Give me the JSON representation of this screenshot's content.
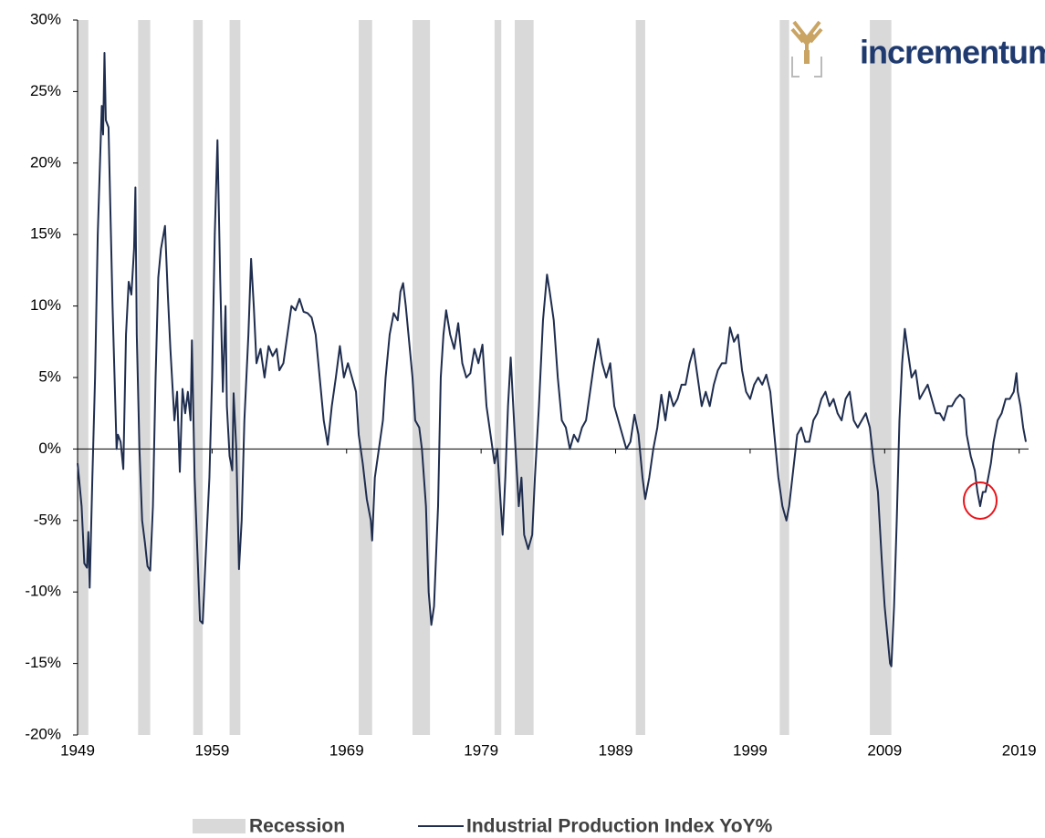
{
  "chart_data": {
    "type": "line",
    "logo": "incrementum",
    "xlim": [
      1949,
      2019.7
    ],
    "xticks": [
      1949,
      1959,
      1969,
      1979,
      1989,
      1999,
      2009,
      2019
    ],
    "ylim": [
      -20,
      30
    ],
    "yticks": [
      {
        "value": -20,
        "label": "-20%"
      },
      {
        "value": -15,
        "label": "-15%"
      },
      {
        "value": -10,
        "label": "-10%"
      },
      {
        "value": -5,
        "label": "-5%"
      },
      {
        "value": 0,
        "label": "0%"
      },
      {
        "value": 5,
        "label": "5%"
      },
      {
        "value": 10,
        "label": "10%"
      },
      {
        "value": 15,
        "label": "15%"
      },
      {
        "value": 20,
        "label": "20%"
      },
      {
        "value": 25,
        "label": "25%"
      },
      {
        "value": 30,
        "label": "30%"
      }
    ],
    "series": [
      {
        "name": "Recession",
        "type": "band",
        "color": "#d9d9d9",
        "ranges": [
          [
            1949.0,
            1949.8
          ],
          [
            1953.5,
            1954.4
          ],
          [
            1957.6,
            1958.3
          ],
          [
            1960.3,
            1961.1
          ],
          [
            1969.9,
            1970.9
          ],
          [
            1973.9,
            1975.2
          ],
          [
            1980.0,
            1980.5
          ],
          [
            1981.5,
            1982.9
          ],
          [
            1990.5,
            1991.2
          ],
          [
            2001.2,
            2001.9
          ],
          [
            2007.9,
            2009.5
          ]
        ]
      },
      {
        "name": "Industrial Production Index YoY%",
        "type": "line",
        "color": "#1f2d4e",
        "x": [
          1949.0,
          1949.3,
          1949.5,
          1949.7,
          1949.8,
          1949.9,
          1950.1,
          1950.3,
          1950.5,
          1950.8,
          1950.9,
          1951.0,
          1951.1,
          1951.3,
          1951.6,
          1951.9,
          1952.0,
          1952.2,
          1952.4,
          1952.6,
          1952.8,
          1953.0,
          1953.2,
          1953.3,
          1953.4,
          1953.6,
          1953.8,
          1954.0,
          1954.2,
          1954.4,
          1954.6,
          1954.8,
          1955.0,
          1955.2,
          1955.5,
          1955.7,
          1955.9,
          1956.2,
          1956.4,
          1956.6,
          1956.8,
          1957.0,
          1957.2,
          1957.4,
          1957.5,
          1957.7,
          1957.9,
          1958.1,
          1958.3,
          1958.5,
          1958.8,
          1959.0,
          1959.2,
          1959.4,
          1959.6,
          1959.8,
          1960.0,
          1960.1,
          1960.3,
          1960.5,
          1960.6,
          1960.8,
          1961.0,
          1961.2,
          1961.4,
          1961.7,
          1961.9,
          1962.1,
          1962.3,
          1962.6,
          1962.9,
          1963.2,
          1963.5,
          1963.8,
          1964.0,
          1964.3,
          1964.6,
          1964.9,
          1965.2,
          1965.5,
          1965.8,
          1966.1,
          1966.4,
          1966.7,
          1967.0,
          1967.3,
          1967.6,
          1967.9,
          1968.2,
          1968.5,
          1968.8,
          1969.1,
          1969.4,
          1969.7,
          1969.9,
          1970.2,
          1970.5,
          1970.8,
          1970.9,
          1971.1,
          1971.4,
          1971.7,
          1971.9,
          1972.2,
          1972.5,
          1972.8,
          1973.0,
          1973.2,
          1973.4,
          1973.6,
          1973.9,
          1974.1,
          1974.4,
          1974.6,
          1974.9,
          1975.1,
          1975.3,
          1975.5,
          1975.8,
          1976.0,
          1976.2,
          1976.4,
          1976.7,
          1977.0,
          1977.3,
          1977.6,
          1977.9,
          1978.2,
          1978.5,
          1978.8,
          1979.1,
          1979.4,
          1979.7,
          1980.0,
          1980.2,
          1980.4,
          1980.6,
          1980.8,
          1981.0,
          1981.2,
          1981.5,
          1981.8,
          1982.0,
          1982.2,
          1982.5,
          1982.8,
          1983.0,
          1983.3,
          1983.6,
          1983.9,
          1984.1,
          1984.4,
          1984.7,
          1985.0,
          1985.3,
          1985.6,
          1985.9,
          1986.2,
          1986.5,
          1986.8,
          1987.1,
          1987.4,
          1987.7,
          1988.0,
          1988.3,
          1988.6,
          1988.9,
          1989.2,
          1989.5,
          1989.8,
          1990.1,
          1990.4,
          1990.7,
          1991.0,
          1991.2,
          1991.5,
          1991.8,
          1992.1,
          1992.4,
          1992.7,
          1993.0,
          1993.3,
          1993.6,
          1993.9,
          1994.2,
          1994.5,
          1994.8,
          1995.1,
          1995.4,
          1995.7,
          1996.0,
          1996.3,
          1996.6,
          1996.9,
          1997.2,
          1997.5,
          1997.8,
          1998.1,
          1998.4,
          1998.7,
          1999.0,
          1999.3,
          1999.6,
          1999.9,
          2000.2,
          2000.5,
          2000.8,
          2001.1,
          2001.4,
          2001.7,
          2001.9,
          2002.2,
          2002.5,
          2002.8,
          2003.1,
          2003.4,
          2003.7,
          2004.0,
          2004.3,
          2004.6,
          2004.9,
          2005.2,
          2005.5,
          2005.8,
          2006.1,
          2006.4,
          2006.7,
          2007.0,
          2007.3,
          2007.6,
          2007.9,
          2008.2,
          2008.5,
          2008.8,
          2009.0,
          2009.2,
          2009.4,
          2009.5,
          2009.7,
          2009.9,
          2010.1,
          2010.3,
          2010.5,
          2010.7,
          2011.0,
          2011.3,
          2011.6,
          2011.9,
          2012.2,
          2012.5,
          2012.8,
          2013.1,
          2013.4,
          2013.7,
          2014.0,
          2014.3,
          2014.6,
          2014.9,
          2015.1,
          2015.4,
          2015.7,
          2015.9,
          2016.1,
          2016.3,
          2016.5,
          2016.7,
          2016.9,
          2017.1,
          2017.4,
          2017.7,
          2018.0,
          2018.3,
          2018.6,
          2018.8,
          2018.9,
          2019.1,
          2019.3,
          2019.5
        ],
        "values": [
          -1,
          -4,
          -8,
          -8.3,
          -5.8,
          -9.7,
          -2,
          5,
          15,
          24,
          22,
          27.7,
          23,
          22.5,
          10,
          0,
          1,
          0.5,
          -1.4,
          8,
          11.7,
          10.8,
          14,
          18.3,
          8,
          0,
          -5,
          -6.5,
          -8.2,
          -8.5,
          -4,
          5,
          12,
          14,
          15.6,
          11,
          7,
          2,
          4,
          -1.6,
          4.2,
          2.5,
          4,
          2,
          7.6,
          -2,
          -7,
          -12,
          -12.2,
          -8,
          -2,
          5,
          15,
          21.6,
          12,
          4,
          10,
          3,
          -0.5,
          -1.5,
          3.9,
          0,
          -8.4,
          -5,
          2,
          8,
          13.3,
          10,
          6,
          7,
          5,
          7.2,
          6.5,
          7,
          5.5,
          6,
          8,
          10,
          9.7,
          10.5,
          9.6,
          9.5,
          9.2,
          8,
          5,
          2,
          0.3,
          3,
          5,
          7.2,
          5,
          6,
          5,
          4,
          1,
          -1,
          -3.5,
          -5,
          -6.4,
          -2,
          0,
          2,
          5,
          8,
          9.5,
          9,
          11,
          11.6,
          10,
          8,
          5,
          2,
          1.5,
          0,
          -4,
          -10,
          -12.3,
          -11,
          -4,
          5,
          8,
          9.7,
          8,
          7,
          8.8,
          6,
          5,
          5.3,
          7,
          6,
          7.3,
          3,
          1,
          -1,
          0,
          -3,
          -6,
          -2,
          3,
          6.4,
          1,
          -4,
          -2,
          -6,
          -7,
          -6,
          -2,
          3,
          9,
          12.2,
          11,
          9,
          5,
          2,
          1.5,
          0,
          1,
          0.5,
          1.5,
          2,
          4,
          6,
          7.7,
          6,
          5,
          6,
          3,
          2,
          1,
          0,
          0.5,
          2.4,
          1,
          -2,
          -3.5,
          -2,
          0,
          1.5,
          3.8,
          2,
          4,
          3,
          3.5,
          4.5,
          4.5,
          6,
          7,
          5,
          3,
          4,
          3,
          4.5,
          5.5,
          6,
          6,
          8.5,
          7.5,
          8,
          5.5,
          4,
          3.5,
          4.5,
          5,
          4.5,
          5.2,
          4,
          1,
          -2,
          -4,
          -5,
          -4,
          -1.5,
          1,
          1.5,
          0.5,
          0.5,
          2,
          2.5,
          3.5,
          4,
          3,
          3.5,
          2.5,
          2,
          3.5,
          4,
          2,
          1.5,
          2,
          2.5,
          1.5,
          -1,
          -3,
          -8,
          -11,
          -13,
          -15,
          -15.2,
          -11,
          -5,
          2,
          6,
          8.4,
          7,
          5,
          5.5,
          3.5,
          4,
          4.5,
          3.5,
          2.5,
          2.5,
          2,
          3,
          3,
          3.5,
          3.8,
          3.5,
          1,
          -0.5,
          -1.5,
          -3,
          -4,
          -3,
          -3,
          -2,
          -1,
          0.5,
          2,
          2.5,
          3.5,
          3.5,
          4,
          5.3,
          4,
          3,
          1.5,
          0.5
        ]
      }
    ]
  }
}
